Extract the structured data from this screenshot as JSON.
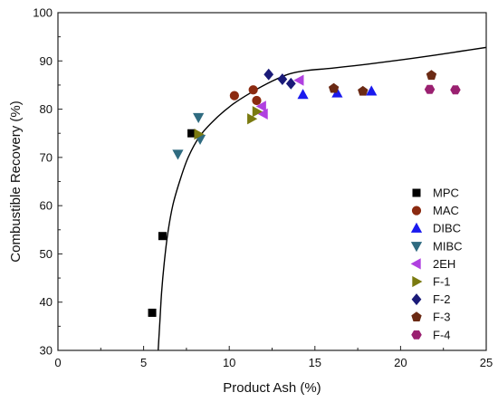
{
  "chart_data": {
    "type": "scatter",
    "title": "",
    "xlabel": "Product Ash (%)",
    "ylabel": "Combustible Recovery (%)",
    "xlim": [
      0,
      25
    ],
    "ylim": [
      30,
      100
    ],
    "x_ticks": [
      0,
      5,
      10,
      15,
      20,
      25
    ],
    "y_ticks": [
      30,
      40,
      50,
      60,
      70,
      80,
      90,
      100
    ],
    "grid": false,
    "legend_position": "right",
    "series": [
      {
        "name": "MPC",
        "marker": "square",
        "color": "#000000",
        "points": [
          [
            5.5,
            37.8
          ],
          [
            6.1,
            53.7
          ],
          [
            7.8,
            75.0
          ]
        ]
      },
      {
        "name": "MAC",
        "marker": "circle",
        "color": "#8b2a10",
        "points": [
          [
            10.3,
            82.8
          ],
          [
            11.4,
            84.0
          ],
          [
            11.6,
            81.8
          ]
        ]
      },
      {
        "name": "DIBC",
        "marker": "triangle-up",
        "color": "#1a1aee",
        "points": [
          [
            14.3,
            83.0
          ],
          [
            16.3,
            83.3
          ],
          [
            18.3,
            83.7
          ]
        ]
      },
      {
        "name": "MIBC",
        "marker": "triangle-down",
        "color": "#2f6b80",
        "points": [
          [
            7.0,
            70.7
          ],
          [
            8.2,
            78.3
          ],
          [
            8.3,
            73.8
          ]
        ]
      },
      {
        "name": "2EH",
        "marker": "triangle-left",
        "color": "#b040e0",
        "points": [
          [
            11.9,
            80.6
          ],
          [
            12.0,
            79.0
          ],
          [
            14.1,
            86.0
          ]
        ]
      },
      {
        "name": "F-1",
        "marker": "triangle-right",
        "color": "#7a7a10",
        "points": [
          [
            8.2,
            74.8
          ],
          [
            11.3,
            78.0
          ],
          [
            11.6,
            79.5
          ]
        ]
      },
      {
        "name": "F-2",
        "marker": "diamond",
        "color": "#1a1a78",
        "points": [
          [
            12.3,
            87.2
          ],
          [
            13.1,
            86.2
          ],
          [
            13.6,
            85.3
          ]
        ]
      },
      {
        "name": "F-3",
        "marker": "pentagon",
        "color": "#6b2a14",
        "points": [
          [
            16.1,
            84.3
          ],
          [
            17.8,
            83.7
          ],
          [
            21.8,
            87.0
          ]
        ]
      },
      {
        "name": "F-4",
        "marker": "hexagon",
        "color": "#9a2070",
        "points": [
          [
            21.7,
            84.1
          ],
          [
            23.2,
            84.0
          ]
        ]
      }
    ],
    "fit_curve": {
      "color": "#000000",
      "points": [
        [
          5.85,
          30
        ],
        [
          5.95,
          36
        ],
        [
          6.05,
          42
        ],
        [
          6.2,
          48
        ],
        [
          6.4,
          54
        ],
        [
          6.7,
          60
        ],
        [
          7.1,
          65
        ],
        [
          7.6,
          70
        ],
        [
          8.3,
          74.5
        ],
        [
          9.2,
          78
        ],
        [
          10.2,
          81
        ],
        [
          11.3,
          83.5
        ],
        [
          12.5,
          85.8
        ],
        [
          13.5,
          87.3
        ],
        [
          14.5,
          88.0
        ],
        [
          16.0,
          88.5
        ],
        [
          18.0,
          89.3
        ],
        [
          20.0,
          90.2
        ],
        [
          22.0,
          91.2
        ],
        [
          23.5,
          92.0
        ],
        [
          25.0,
          92.8
        ]
      ]
    }
  }
}
